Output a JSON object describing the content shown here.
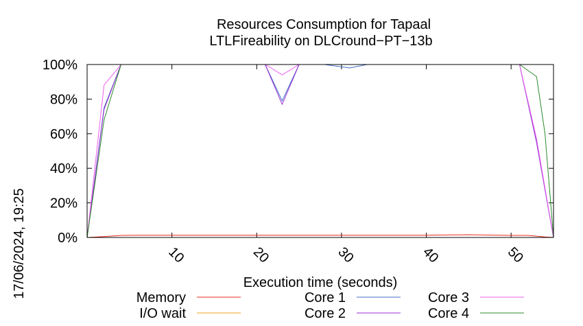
{
  "chart_data": {
    "type": "line",
    "title": "Resources Consumption for Tapaal",
    "subtitle": "LTLFireability on DLCround−PT−13b",
    "xlabel": "Execution time (seconds)",
    "side_label": "17/06/2024, 19:25",
    "xlim": [
      0,
      55
    ],
    "ylim": [
      0,
      100
    ],
    "y_ticks": [
      {
        "value": 0,
        "label": "0%"
      },
      {
        "value": 20,
        "label": "20%"
      },
      {
        "value": 40,
        "label": "40%"
      },
      {
        "value": 60,
        "label": "60%"
      },
      {
        "value": 80,
        "label": "80%"
      },
      {
        "value": 100,
        "label": "100%"
      }
    ],
    "x_ticks": [
      {
        "value": 10,
        "label": "10"
      },
      {
        "value": 20,
        "label": "20"
      },
      {
        "value": 30,
        "label": "30"
      },
      {
        "value": 40,
        "label": "40"
      },
      {
        "value": 50,
        "label": "50"
      }
    ],
    "grid": false,
    "legend_position": "bottom",
    "series": [
      {
        "name": "Memory",
        "color": "#e8291c",
        "x": [
          0,
          2,
          4,
          6,
          10,
          20,
          30,
          40,
          45,
          50,
          52,
          54,
          55
        ],
        "y": [
          0,
          0.5,
          1.2,
          1.3,
          1.3,
          1.3,
          1.3,
          1.3,
          1.6,
          1.2,
          1.2,
          0.3,
          0
        ]
      },
      {
        "name": "I/O wait",
        "color": "#f0a21e",
        "x": [
          0,
          55
        ],
        "y": [
          0,
          0
        ]
      },
      {
        "name": "Core 1",
        "color": "#3f6bc6",
        "x": [
          0,
          2,
          4,
          21,
          23,
          25,
          28,
          31,
          33,
          51,
          53,
          55
        ],
        "y": [
          0,
          75,
          100,
          100,
          79,
          100,
          100,
          98,
          100,
          100,
          55,
          0
        ]
      },
      {
        "name": "Core 2",
        "color": "#9a2fd4",
        "x": [
          0,
          2,
          4,
          21,
          23,
          25,
          51,
          53,
          55
        ],
        "y": [
          0,
          74,
          100,
          100,
          77,
          100,
          100,
          55,
          0
        ]
      },
      {
        "name": "Core 3",
        "color": "#ec5cee",
        "x": [
          0,
          2,
          4,
          21,
          23,
          25,
          51,
          53,
          55
        ],
        "y": [
          0,
          88,
          100,
          100,
          94,
          100,
          100,
          57,
          0
        ]
      },
      {
        "name": "Core 4",
        "color": "#2a8a2a",
        "x": [
          0,
          2,
          4,
          51,
          53,
          54,
          55
        ],
        "y": [
          0,
          68,
          100,
          100,
          93,
          60,
          0
        ]
      }
    ]
  }
}
